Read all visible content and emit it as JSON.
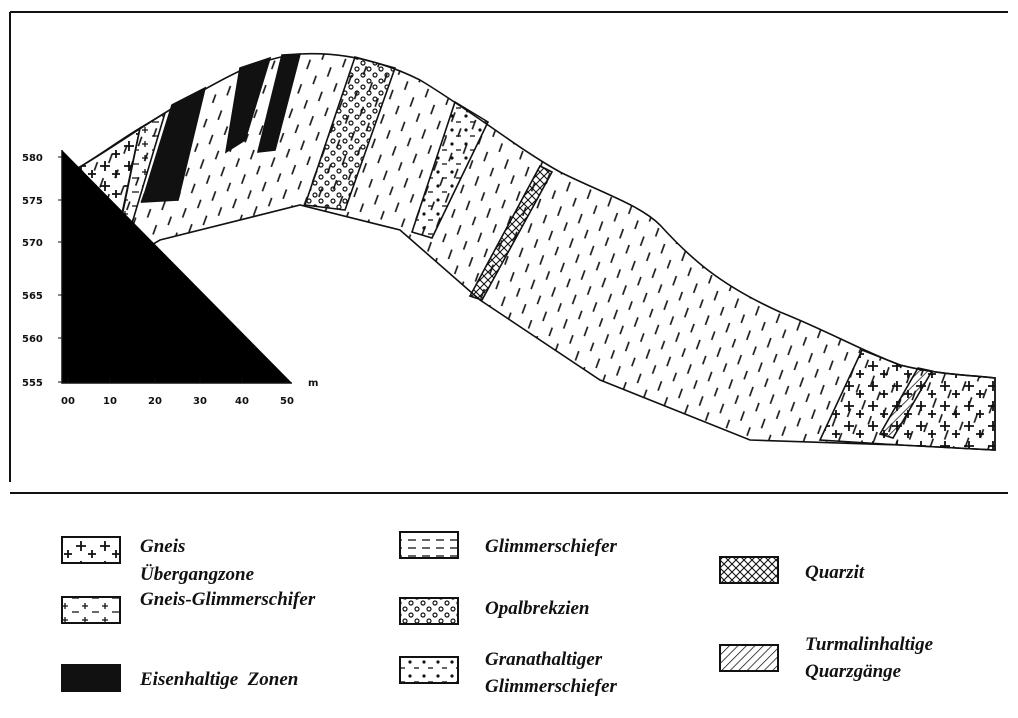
{
  "scale": {
    "y_labels": [
      "580",
      "575",
      "570",
      "565",
      "560",
      "555"
    ],
    "x_labels": [
      "00",
      "10",
      "20",
      "30",
      "40",
      "50"
    ],
    "unit": "m"
  },
  "legend": [
    {
      "lines": [
        "Gneis"
      ]
    },
    {
      "lines": [
        "Übergangzone",
        "Gneis-Glimmerschifer"
      ]
    },
    {
      "lines": [
        "Eisenhaltige  Zonen"
      ]
    },
    {
      "lines": [
        "Glimmerschiefer"
      ]
    },
    {
      "lines": [
        "Opalbrekzien"
      ]
    },
    {
      "lines": [
        "Granathaltiger",
        "Glimmerschiefer"
      ]
    },
    {
      "lines": [
        "Quarzit"
      ]
    },
    {
      "lines": [
        "Turmalinhaltige",
        "Quarzgänge"
      ]
    }
  ]
}
